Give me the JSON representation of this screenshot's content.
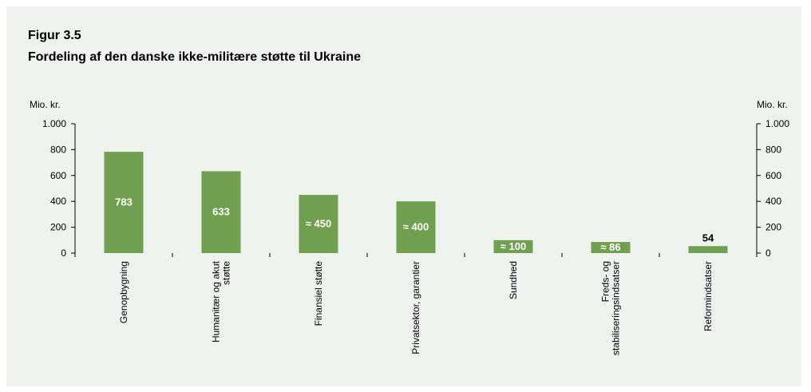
{
  "figure": {
    "label": "Figur 3.5",
    "title": "Fordeling af den danske ikke-militære støtte til Ukraine"
  },
  "chart_data": {
    "type": "bar",
    "unit_left": "Mio. kr.",
    "unit_right": "Mio. kr.",
    "ylim": [
      0,
      1000
    ],
    "ticks": [
      {
        "value": 0,
        "label": "0"
      },
      {
        "value": 200,
        "label": "200"
      },
      {
        "value": 400,
        "label": "400"
      },
      {
        "value": 600,
        "label": "600"
      },
      {
        "value": 800,
        "label": "800"
      },
      {
        "value": 1000,
        "label": "1.000"
      }
    ],
    "bar_color": "#70a04f",
    "categories": [
      [
        "Genopbygning"
      ],
      [
        "Humanitær og akut",
        "støtte"
      ],
      [
        "Finansiel støtte"
      ],
      [
        "Privatsektor, garantier"
      ],
      [
        "Sundhed"
      ],
      [
        "Freds- og",
        "stabiliseringsindsatser"
      ],
      [
        "Reformindsatser"
      ]
    ],
    "values": [
      783,
      633,
      450,
      400,
      100,
      86,
      54
    ],
    "data_labels": [
      "783",
      "633",
      "≈ 450",
      "≈ 400",
      "≈ 100",
      "≈ 86",
      "54"
    ]
  }
}
